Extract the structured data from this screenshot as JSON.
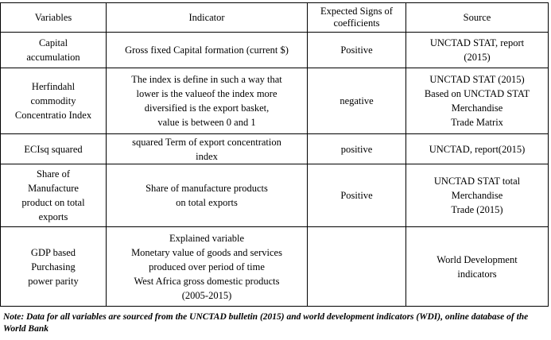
{
  "headers": [
    "Variables",
    "Indicator",
    "Expected Signs of coefficients",
    "Source"
  ],
  "rows": [
    {
      "variable": [
        "Capital",
        "accumulation"
      ],
      "indicator": [
        "Gross fixed Capital formation (current $)"
      ],
      "sign": "Positive",
      "source": [
        "UNCTAD STAT, report",
        "(2015)"
      ]
    },
    {
      "variable": [
        "Herfindahl",
        "commodity",
        "Concentratio Index"
      ],
      "indicator": [
        "The index is define in such a way that",
        "lower is the valueof the index more",
        "diversified is the export basket,",
        "value is between 0 and 1"
      ],
      "sign": "negative",
      "source": [
        "UNCTAD STAT (2015)",
        "Based on UNCTAD STAT",
        "Merchandise",
        "Trade Matrix"
      ]
    },
    {
      "variable": [
        "ECIsq squared"
      ],
      "indicator": [
        "squared Term of export concentration",
        "index"
      ],
      "sign": "positive",
      "source": [
        "UNCTAD, report(2015)"
      ]
    },
    {
      "variable": [
        "Share of",
        "Manufacture",
        "product on total",
        "exports"
      ],
      "indicator": [
        "Share of manufacture products",
        "on total exports"
      ],
      "sign": "Positive",
      "source": [
        "UNCTAD STAT total",
        "Merchandise",
        "Trade (2015)"
      ]
    },
    {
      "variable": [
        "GDP based",
        "Purchasing",
        "power parity"
      ],
      "indicator": [
        "Explained variable",
        "Monetary value of goods and services",
        "produced over period of time",
        "West Africa gross domestic products",
        "(2005-2015)"
      ],
      "sign": "",
      "source": [
        "World Development",
        "indicators"
      ]
    }
  ],
  "note": "Note: Data for all variables are sourced from the UNCTAD bulletin (2015) and world development indicators (WDI), online database of the World Bank"
}
